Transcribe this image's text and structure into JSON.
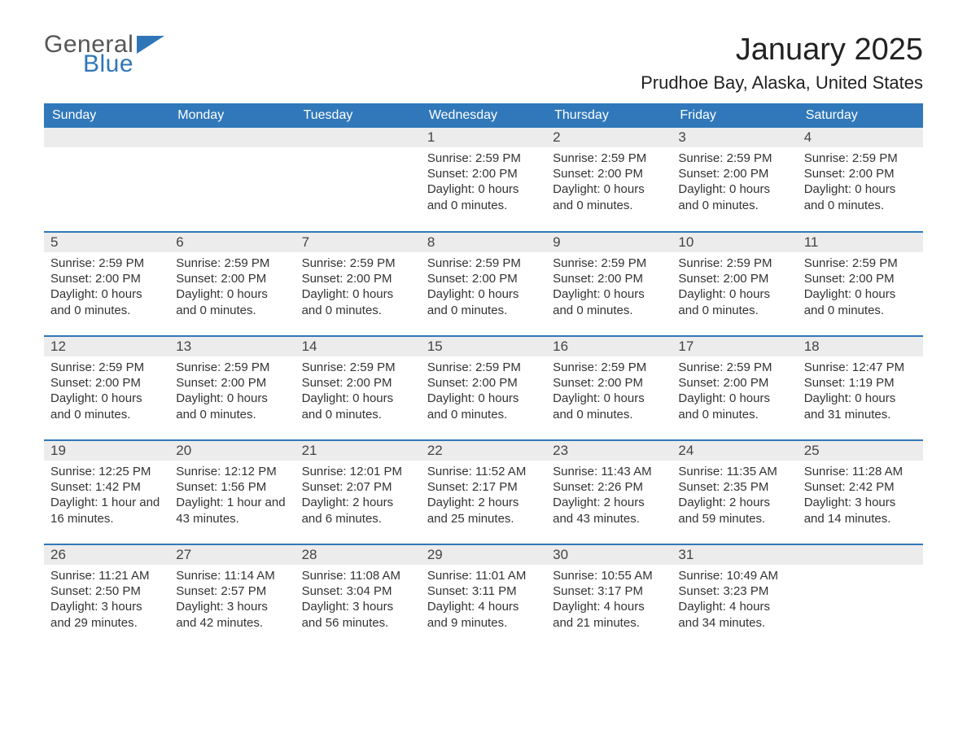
{
  "brand": {
    "word1": "General",
    "word2": "Blue"
  },
  "title": "January 2025",
  "location": "Prudhoe Bay, Alaska, United States",
  "colors": {
    "brand_blue": "#2f76b8",
    "header_blue": "#3078ba",
    "row_separator": "#3078ba",
    "daynum_bg": "#ececec",
    "page_bg": "#ffffff",
    "text": "#333333"
  },
  "layout": {
    "columns": 7,
    "rows": 5,
    "first_weekday_index": 3
  },
  "weekdays": [
    "Sunday",
    "Monday",
    "Tuesday",
    "Wednesday",
    "Thursday",
    "Friday",
    "Saturday"
  ],
  "days": [
    {
      "n": 1,
      "sunrise": "2:59 PM",
      "sunset": "2:00 PM",
      "daylight": "0 hours and 0 minutes."
    },
    {
      "n": 2,
      "sunrise": "2:59 PM",
      "sunset": "2:00 PM",
      "daylight": "0 hours and 0 minutes."
    },
    {
      "n": 3,
      "sunrise": "2:59 PM",
      "sunset": "2:00 PM",
      "daylight": "0 hours and 0 minutes."
    },
    {
      "n": 4,
      "sunrise": "2:59 PM",
      "sunset": "2:00 PM",
      "daylight": "0 hours and 0 minutes."
    },
    {
      "n": 5,
      "sunrise": "2:59 PM",
      "sunset": "2:00 PM",
      "daylight": "0 hours and 0 minutes."
    },
    {
      "n": 6,
      "sunrise": "2:59 PM",
      "sunset": "2:00 PM",
      "daylight": "0 hours and 0 minutes."
    },
    {
      "n": 7,
      "sunrise": "2:59 PM",
      "sunset": "2:00 PM",
      "daylight": "0 hours and 0 minutes."
    },
    {
      "n": 8,
      "sunrise": "2:59 PM",
      "sunset": "2:00 PM",
      "daylight": "0 hours and 0 minutes."
    },
    {
      "n": 9,
      "sunrise": "2:59 PM",
      "sunset": "2:00 PM",
      "daylight": "0 hours and 0 minutes."
    },
    {
      "n": 10,
      "sunrise": "2:59 PM",
      "sunset": "2:00 PM",
      "daylight": "0 hours and 0 minutes."
    },
    {
      "n": 11,
      "sunrise": "2:59 PM",
      "sunset": "2:00 PM",
      "daylight": "0 hours and 0 minutes."
    },
    {
      "n": 12,
      "sunrise": "2:59 PM",
      "sunset": "2:00 PM",
      "daylight": "0 hours and 0 minutes."
    },
    {
      "n": 13,
      "sunrise": "2:59 PM",
      "sunset": "2:00 PM",
      "daylight": "0 hours and 0 minutes."
    },
    {
      "n": 14,
      "sunrise": "2:59 PM",
      "sunset": "2:00 PM",
      "daylight": "0 hours and 0 minutes."
    },
    {
      "n": 15,
      "sunrise": "2:59 PM",
      "sunset": "2:00 PM",
      "daylight": "0 hours and 0 minutes."
    },
    {
      "n": 16,
      "sunrise": "2:59 PM",
      "sunset": "2:00 PM",
      "daylight": "0 hours and 0 minutes."
    },
    {
      "n": 17,
      "sunrise": "2:59 PM",
      "sunset": "2:00 PM",
      "daylight": "0 hours and 0 minutes."
    },
    {
      "n": 18,
      "sunrise": "12:47 PM",
      "sunset": "1:19 PM",
      "daylight": "0 hours and 31 minutes."
    },
    {
      "n": 19,
      "sunrise": "12:25 PM",
      "sunset": "1:42 PM",
      "daylight": "1 hour and 16 minutes."
    },
    {
      "n": 20,
      "sunrise": "12:12 PM",
      "sunset": "1:56 PM",
      "daylight": "1 hour and 43 minutes."
    },
    {
      "n": 21,
      "sunrise": "12:01 PM",
      "sunset": "2:07 PM",
      "daylight": "2 hours and 6 minutes."
    },
    {
      "n": 22,
      "sunrise": "11:52 AM",
      "sunset": "2:17 PM",
      "daylight": "2 hours and 25 minutes."
    },
    {
      "n": 23,
      "sunrise": "11:43 AM",
      "sunset": "2:26 PM",
      "daylight": "2 hours and 43 minutes."
    },
    {
      "n": 24,
      "sunrise": "11:35 AM",
      "sunset": "2:35 PM",
      "daylight": "2 hours and 59 minutes."
    },
    {
      "n": 25,
      "sunrise": "11:28 AM",
      "sunset": "2:42 PM",
      "daylight": "3 hours and 14 minutes."
    },
    {
      "n": 26,
      "sunrise": "11:21 AM",
      "sunset": "2:50 PM",
      "daylight": "3 hours and 29 minutes."
    },
    {
      "n": 27,
      "sunrise": "11:14 AM",
      "sunset": "2:57 PM",
      "daylight": "3 hours and 42 minutes."
    },
    {
      "n": 28,
      "sunrise": "11:08 AM",
      "sunset": "3:04 PM",
      "daylight": "3 hours and 56 minutes."
    },
    {
      "n": 29,
      "sunrise": "11:01 AM",
      "sunset": "3:11 PM",
      "daylight": "4 hours and 9 minutes."
    },
    {
      "n": 30,
      "sunrise": "10:55 AM",
      "sunset": "3:17 PM",
      "daylight": "4 hours and 21 minutes."
    },
    {
      "n": 31,
      "sunrise": "10:49 AM",
      "sunset": "3:23 PM",
      "daylight": "4 hours and 34 minutes."
    }
  ],
  "labels": {
    "sunrise": "Sunrise: ",
    "sunset": "Sunset: ",
    "daylight": "Daylight: "
  }
}
